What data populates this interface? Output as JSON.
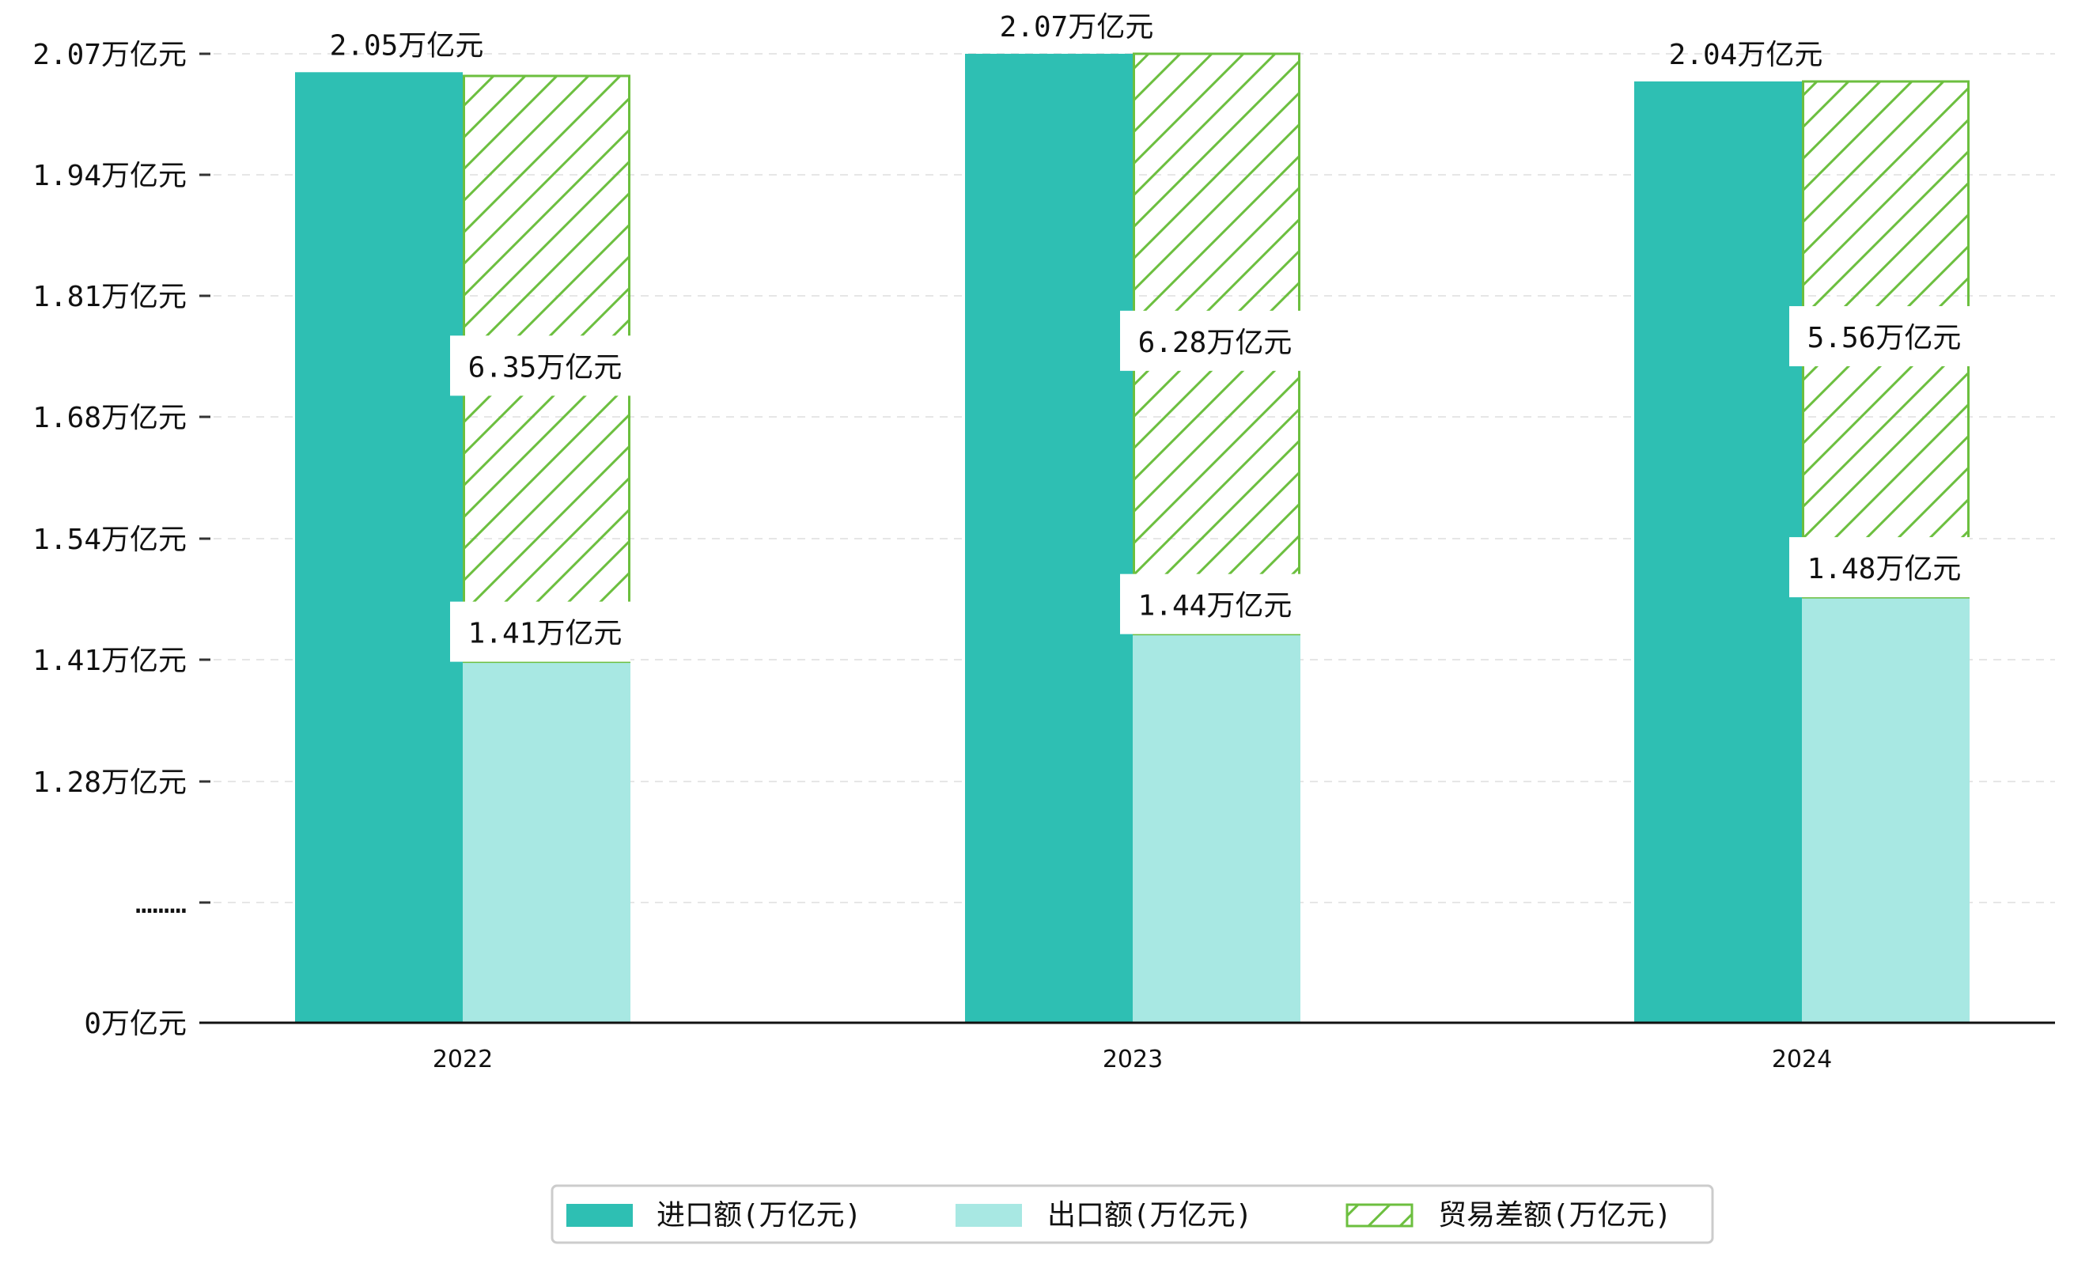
{
  "chart_data": {
    "type": "bar",
    "title": "",
    "xlabel": "",
    "ylabel": "",
    "categories": [
      "2022",
      "2023",
      "2024"
    ],
    "y_ticks": [
      "2.07万亿元",
      "1.94万亿元",
      "1.81万亿元",
      "1.68万亿元",
      "1.54万亿元",
      "1.41万亿元",
      "1.28万亿元",
      "………",
      "0万亿元"
    ],
    "axis_break": true,
    "grid": "horizontal dashed",
    "legend_position": "bottom-center",
    "series": [
      {
        "name": "进口额(万亿元)",
        "values": [
          2.05,
          2.07,
          2.04
        ],
        "labels": [
          "2.05万亿元",
          "2.07万亿元",
          "2.04万亿元"
        ],
        "color": "#2ebfb3",
        "style": "solid"
      },
      {
        "name": "出口额(万亿元)",
        "values": [
          1.41,
          1.44,
          1.48
        ],
        "labels": [
          "1.41万亿元",
          "1.44万亿元",
          "1.48万亿元"
        ],
        "color": "#a8e8e3",
        "style": "solid"
      },
      {
        "name": "贸易差额(万亿元)",
        "values": [
          6.35,
          6.28,
          5.56
        ],
        "labels": [
          "6.35万亿元",
          "6.28万亿元",
          "5.56万亿元"
        ],
        "color": "#6cbf3f",
        "style": "hatched"
      }
    ]
  }
}
